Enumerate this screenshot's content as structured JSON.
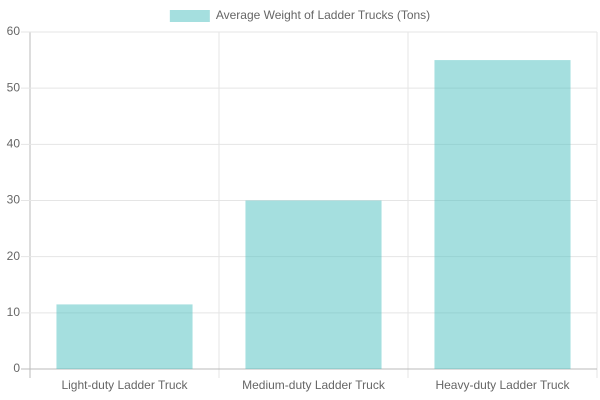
{
  "chart_data": {
    "type": "bar",
    "categories": [
      "Light-duty Ladder Truck",
      "Medium-duty Ladder Truck",
      "Heavy-duty Ladder Truck"
    ],
    "series": [
      {
        "name": "Average Weight of Ladder Trucks (Tons)",
        "color": "#4bc0c0",
        "values": [
          11.5,
          30,
          55
        ]
      }
    ],
    "ylim": [
      0,
      60
    ],
    "yticks": [
      0,
      10,
      20,
      30,
      40,
      50,
      60
    ],
    "grid": true,
    "legend": "top"
  }
}
